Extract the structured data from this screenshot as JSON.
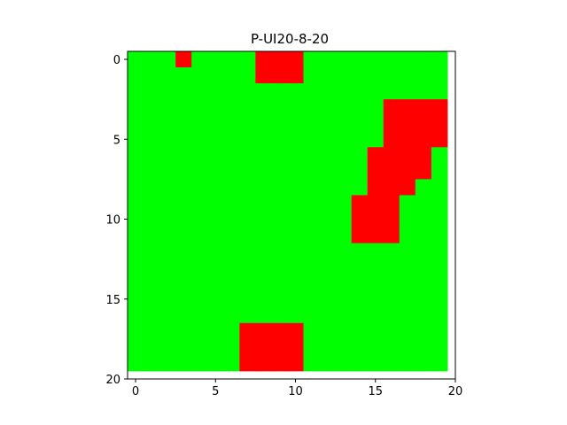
{
  "chart_data": {
    "type": "heatmap",
    "title": "P-UI20-8-20",
    "xlabel": "",
    "ylabel": "",
    "grid_size": [
      20,
      20
    ],
    "xlim": [
      -0.5,
      20
    ],
    "ylim": [
      20,
      -0.5
    ],
    "y_inverted": true,
    "grid": false,
    "x_ticks": [
      0,
      5,
      10,
      15,
      20
    ],
    "y_ticks": [
      0,
      5,
      10,
      15,
      20
    ],
    "colors": {
      "free": "#00ff00",
      "blocked": "#ff0000"
    },
    "blocked_cells": [
      [
        0,
        3
      ],
      [
        0,
        8
      ],
      [
        0,
        9
      ],
      [
        0,
        10
      ],
      [
        1,
        8
      ],
      [
        1,
        9
      ],
      [
        1,
        10
      ],
      [
        3,
        16
      ],
      [
        3,
        17
      ],
      [
        3,
        18
      ],
      [
        3,
        19
      ],
      [
        4,
        16
      ],
      [
        4,
        17
      ],
      [
        4,
        18
      ],
      [
        4,
        19
      ],
      [
        5,
        16
      ],
      [
        5,
        17
      ],
      [
        5,
        18
      ],
      [
        5,
        19
      ],
      [
        6,
        15
      ],
      [
        6,
        16
      ],
      [
        6,
        17
      ],
      [
        6,
        18
      ],
      [
        7,
        15
      ],
      [
        7,
        16
      ],
      [
        7,
        17
      ],
      [
        7,
        18
      ],
      [
        8,
        15
      ],
      [
        8,
        16
      ],
      [
        8,
        17
      ],
      [
        9,
        14
      ],
      [
        9,
        15
      ],
      [
        9,
        16
      ],
      [
        10,
        14
      ],
      [
        10,
        15
      ],
      [
        10,
        16
      ],
      [
        11,
        14
      ],
      [
        11,
        15
      ],
      [
        11,
        16
      ],
      [
        17,
        7
      ],
      [
        17,
        8
      ],
      [
        17,
        9
      ],
      [
        17,
        10
      ],
      [
        18,
        7
      ],
      [
        18,
        8
      ],
      [
        18,
        9
      ],
      [
        18,
        10
      ],
      [
        19,
        7
      ],
      [
        19,
        8
      ],
      [
        19,
        9
      ],
      [
        19,
        10
      ]
    ]
  }
}
